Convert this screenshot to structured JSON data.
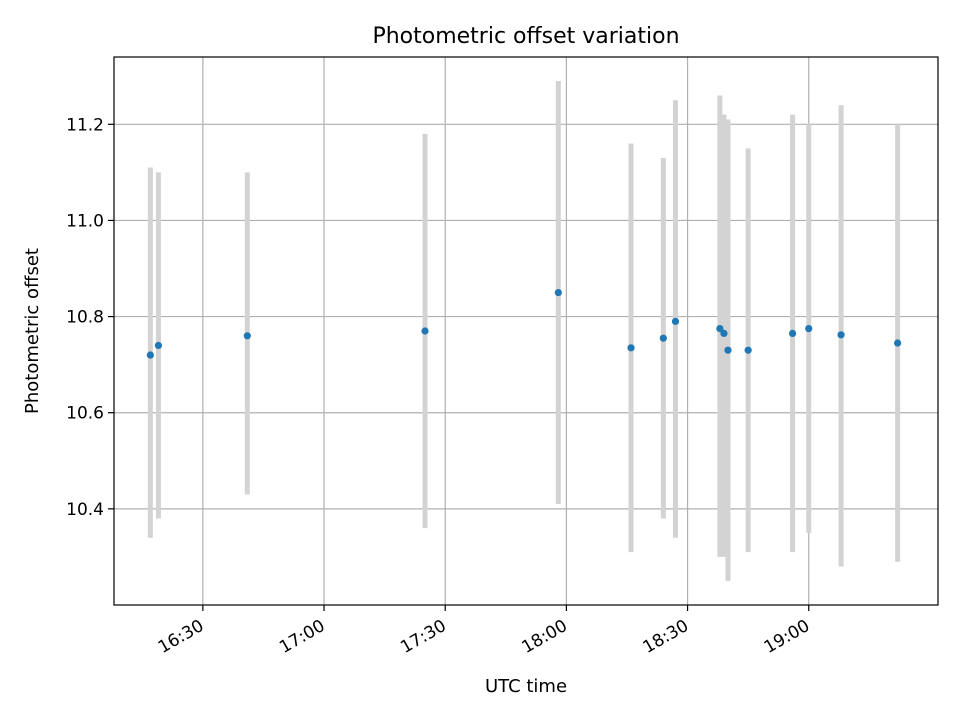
{
  "colors": {
    "point": "#1f77b4",
    "errorbar": "#d3d3d3",
    "grid": "#b0b0b0",
    "axis": "#000000"
  },
  "chart_data": {
    "type": "scatter",
    "title": "Photometric offset variation",
    "xlabel": "UTC time",
    "ylabel": "Photometric offset",
    "grid": true,
    "legend": "none",
    "x_axis_type": "time",
    "xlim": [
      "16:08",
      "19:32"
    ],
    "ylim": [
      10.2,
      11.34
    ],
    "x_ticks": [
      "16:30",
      "17:00",
      "17:30",
      "18:00",
      "18:30",
      "19:00"
    ],
    "y_ticks": [
      10.4,
      10.6,
      10.8,
      11.0,
      11.2
    ],
    "y_tick_labels": [
      "10.4",
      "10.6",
      "10.8",
      "11.0",
      "11.2"
    ],
    "series": [
      {
        "points": [
          {
            "x": "16:17",
            "y": 10.72,
            "y_low": 10.34,
            "y_high": 11.11
          },
          {
            "x": "16:19",
            "y": 10.74,
            "y_low": 10.38,
            "y_high": 11.1
          },
          {
            "x": "16:41",
            "y": 10.76,
            "y_low": 10.43,
            "y_high": 11.1
          },
          {
            "x": "17:25",
            "y": 10.77,
            "y_low": 10.36,
            "y_high": 11.18
          },
          {
            "x": "17:58",
            "y": 10.85,
            "y_low": 10.41,
            "y_high": 11.29
          },
          {
            "x": "18:16",
            "y": 10.735,
            "y_low": 10.31,
            "y_high": 11.16
          },
          {
            "x": "18:24",
            "y": 10.755,
            "y_low": 10.38,
            "y_high": 11.13
          },
          {
            "x": "18:27",
            "y": 10.79,
            "y_low": 10.34,
            "y_high": 11.25
          },
          {
            "x": "18:38",
            "y": 10.775,
            "y_low": 10.3,
            "y_high": 11.26
          },
          {
            "x": "18:39",
            "y": 10.765,
            "y_low": 10.3,
            "y_high": 11.22
          },
          {
            "x": "18:40",
            "y": 10.73,
            "y_low": 10.25,
            "y_high": 11.21
          },
          {
            "x": "18:45",
            "y": 10.73,
            "y_low": 10.31,
            "y_high": 11.15
          },
          {
            "x": "18:56",
            "y": 10.765,
            "y_low": 10.31,
            "y_high": 11.22
          },
          {
            "x": "19:00",
            "y": 10.775,
            "y_low": 10.35,
            "y_high": 11.2
          },
          {
            "x": "19:08",
            "y": 10.762,
            "y_low": 10.28,
            "y_high": 11.24
          },
          {
            "x": "19:22",
            "y": 10.745,
            "y_low": 10.29,
            "y_high": 11.2
          }
        ]
      }
    ]
  }
}
